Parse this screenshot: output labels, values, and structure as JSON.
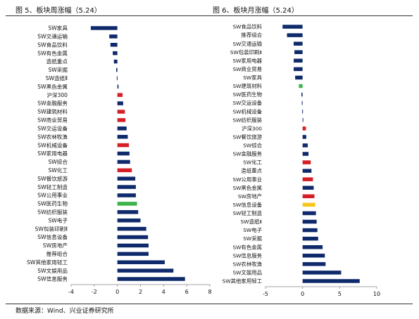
{
  "colors": {
    "navy": "#0f2a6b",
    "red": "#d41f26",
    "green": "#3cb34a",
    "yellow": "#f5c518"
  },
  "titles": {
    "left": "图 5、板块周涨幅（5.24）",
    "right": "图 6、板块月涨幅（5.24）"
  },
  "source": "数据来源：Wind、兴业证券研究所",
  "chart_data": [
    {
      "type": "bar",
      "orientation": "horizontal",
      "xlim": [
        -4,
        8
      ],
      "xticks": [
        -4,
        -2,
        0,
        2,
        4,
        6,
        8
      ],
      "grid": false,
      "categories": [
        "SW家具",
        "SW交通运输",
        "SW食品饮料",
        "SW有色金属",
        "造纸重点",
        "SW采掘",
        "SW造纸Ⅱ",
        "SW黑色金属",
        "沪深300",
        "SW金融服务",
        "SW建筑材料",
        "SW商业贸易",
        "SW交运设备",
        "SW农林牧渔",
        "SW机械设备",
        "SW家用电器",
        "SW综合",
        "SW化工",
        "SW餐饮旅游",
        "SW轻工制造",
        "SW公用事业",
        "SW医药生物",
        "SW纺织服装",
        "SW电子",
        "SW包装印刷Ⅱ",
        "SW信息设备",
        "SW房地产",
        "推荐组合",
        "SW其他家用轻工",
        "SW文娱用品",
        "SW信息服务"
      ],
      "values": [
        -2.3,
        -0.7,
        -0.6,
        -0.4,
        -0.3,
        -0.1,
        -0.05,
        0.1,
        0.45,
        0.5,
        0.65,
        0.7,
        0.8,
        0.9,
        1.0,
        1.05,
        1.1,
        1.25,
        1.55,
        1.6,
        1.6,
        1.7,
        1.8,
        2.0,
        2.5,
        2.65,
        2.7,
        2.7,
        4.1,
        4.85,
        5.85
      ],
      "colors": [
        "#0f2a6b",
        "#0f2a6b",
        "#0f2a6b",
        "#0f2a6b",
        "#0f2a6b",
        "#0f2a6b",
        "#0f2a6b",
        "#0f2a6b",
        "#d41f26",
        "#0f2a6b",
        "#d41f26",
        "#d41f26",
        "#0f2a6b",
        "#0f2a6b",
        "#d41f26",
        "#0f2a6b",
        "#0f2a6b",
        "#d41f26",
        "#0f2a6b",
        "#0f2a6b",
        "#0f2a6b",
        "#3cb34a",
        "#0f2a6b",
        "#0f2a6b",
        "#0f2a6b",
        "#0f2a6b",
        "#0f2a6b",
        "#0f2a6b",
        "#0f2a6b",
        "#0f2a6b",
        "#0f2a6b"
      ]
    },
    {
      "type": "bar",
      "orientation": "horizontal",
      "xlim": [
        -5,
        10
      ],
      "xticks": [
        -5,
        0,
        5,
        10
      ],
      "grid": false,
      "categories": [
        "SW食品饮料",
        "推荐组合",
        "SW交通运输",
        "SW包装印刷Ⅱ",
        "SW家用电器",
        "SW商业贸易",
        "SW家具",
        "SW建筑材料",
        "SW医药生物",
        "SW交运设备",
        "SW机械设备",
        "SW纺织服装",
        "沪深300",
        "SW餐饮旅游",
        "SW综合",
        "SW金融服务",
        "SW化工",
        "造纸重点",
        "SW公用事业",
        "SW黑色金属",
        "SW房地产",
        "SW信息设备",
        "SW轻工制造",
        "SW造纸Ⅱ",
        "SW电子",
        "SW采掘",
        "SW有色金属",
        "SW信息服务",
        "SW农林牧渔",
        "SW文娱用品",
        "SW其他家用轻工"
      ],
      "values": [
        -2.7,
        -2.1,
        -1.2,
        -1.1,
        -1.2,
        -1.2,
        -1.0,
        -0.5,
        -0.15,
        -0.1,
        -0.05,
        0.0,
        0.45,
        0.5,
        0.7,
        0.8,
        1.1,
        1.2,
        1.4,
        1.5,
        1.6,
        1.7,
        1.8,
        1.9,
        2.0,
        2.1,
        2.7,
        3.0,
        3.1,
        5.2,
        7.7
      ],
      "colors": [
        "#0f2a6b",
        "#0f2a6b",
        "#0f2a6b",
        "#0f2a6b",
        "#0f2a6b",
        "#0f2a6b",
        "#0f2a6b",
        "#3cb34a",
        "#0f2a6b",
        "#0f2a6b",
        "#0f2a6b",
        "#0f2a6b",
        "#d41f26",
        "#0f2a6b",
        "#0f2a6b",
        "#0f2a6b",
        "#d41f26",
        "#0f2a6b",
        "#d41f26",
        "#0f2a6b",
        "#d41f26",
        "#f5c518",
        "#0f2a6b",
        "#0f2a6b",
        "#0f2a6b",
        "#0f2a6b",
        "#0f2a6b",
        "#0f2a6b",
        "#0f2a6b",
        "#0f2a6b",
        "#0f2a6b"
      ]
    }
  ]
}
